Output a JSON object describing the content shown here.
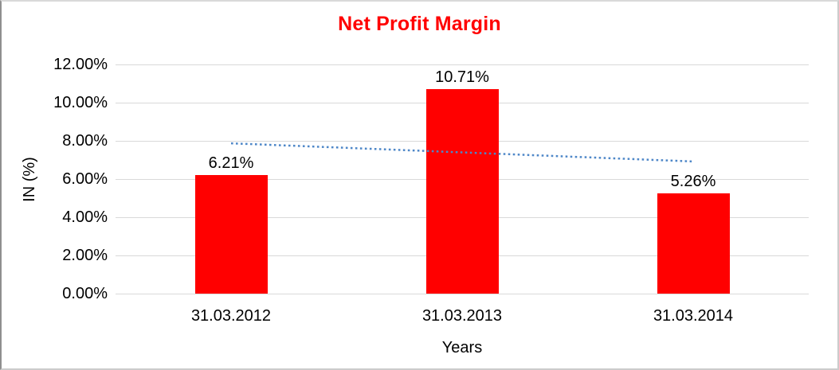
{
  "chart": {
    "colors": {
      "bar": "#FF0000",
      "title": "#FF0000",
      "trendline": "#4E87C8",
      "gridline": "#D9D9D9",
      "axis_text": "#000000",
      "background": "#FFFFFF"
    }
  },
  "chart_data": {
    "type": "bar",
    "title": "Net Profit Margin",
    "xlabel": "Years",
    "ylabel": "IN (%)",
    "categories": [
      "31.03.2012",
      "31.03.2013",
      "31.03.2014"
    ],
    "values": [
      6.21,
      10.71,
      5.26
    ],
    "data_labels": [
      "6.21%",
      "10.71%",
      "5.26%"
    ],
    "y_ticks": [
      "12.00%",
      "10.00%",
      "8.00%",
      "6.00%",
      "4.00%",
      "2.00%",
      "0.00%"
    ],
    "ylim": [
      0,
      12
    ],
    "y_tick_step": 2,
    "grid": true,
    "legend_position": "none",
    "bar_color": "#FF0000",
    "trendline": {
      "type": "linear",
      "style": "dotted",
      "color": "#4E87C8",
      "endpoints_pct": [
        7.87,
        6.92
      ]
    }
  }
}
